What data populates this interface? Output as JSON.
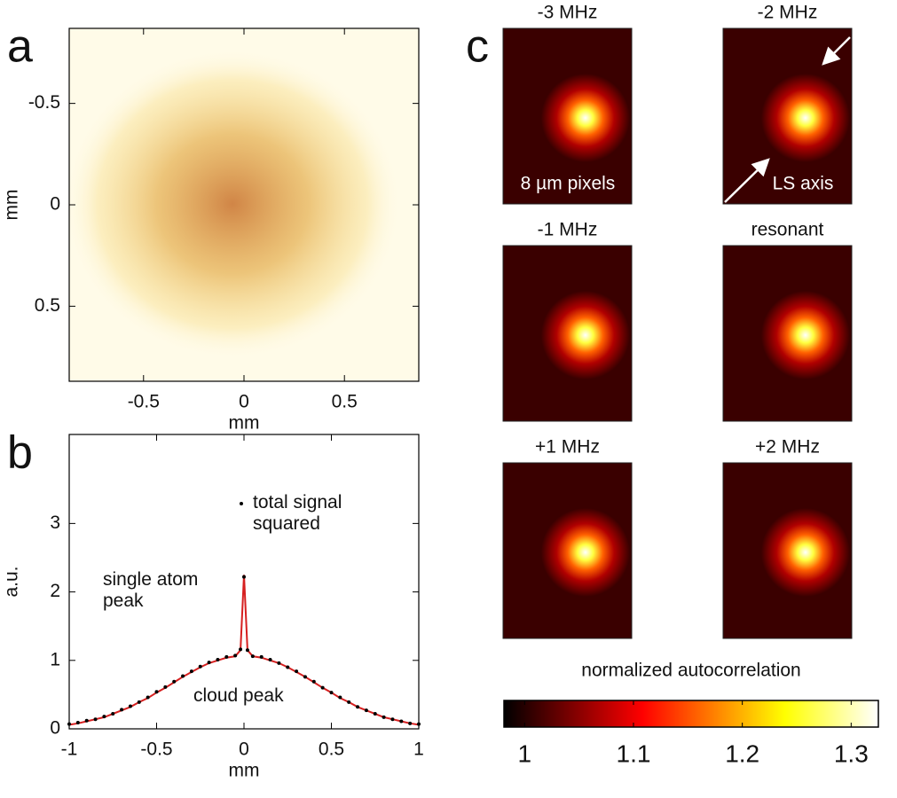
{
  "chart_data": [
    {
      "type": "image",
      "label": "a",
      "xlabel": "mm",
      "ylabel": "mm",
      "xlim": [
        -0.87,
        0.87
      ],
      "ylim": [
        -0.87,
        0.87
      ],
      "y_inverted": true,
      "xticks": [
        -0.5,
        0,
        0.5
      ],
      "yticks": [
        -0.5,
        0,
        0.5
      ]
    },
    {
      "type": "line",
      "label": "b",
      "xlabel": "mm",
      "ylabel": "a.u.",
      "xlim": [
        -1,
        1
      ],
      "ylim": [
        0,
        4.3
      ],
      "xticks": [
        -1,
        -0.5,
        0,
        0.5,
        1
      ],
      "yticks": [
        0,
        1,
        2,
        3
      ],
      "x": [
        -1,
        -0.95,
        -0.9,
        -0.85,
        -0.8,
        -0.75,
        -0.7,
        -0.65,
        -0.6,
        -0.55,
        -0.5,
        -0.45,
        -0.4,
        -0.35,
        -0.3,
        -0.25,
        -0.2,
        -0.15,
        -0.1,
        -0.05,
        -0.02,
        0,
        0.02,
        0.05,
        0.1,
        0.15,
        0.2,
        0.25,
        0.3,
        0.35,
        0.4,
        0.45,
        0.5,
        0.55,
        0.6,
        0.65,
        0.7,
        0.75,
        0.8,
        0.85,
        0.9,
        0.95,
        1
      ],
      "series": [
        {
          "name": "total signal squared",
          "color": "#000000",
          "values": [
            0.07,
            0.09,
            0.12,
            0.14,
            0.18,
            0.22,
            0.28,
            0.33,
            0.39,
            0.46,
            0.54,
            0.61,
            0.69,
            0.77,
            0.84,
            0.91,
            0.97,
            1.01,
            1.05,
            1.07,
            1.16,
            2.22,
            1.15,
            1.06,
            1.05,
            1.01,
            0.96,
            0.9,
            0.84,
            0.76,
            0.69,
            0.6,
            0.53,
            0.46,
            0.39,
            0.32,
            0.27,
            0.22,
            0.17,
            0.14,
            0.11,
            0.08,
            0.07
          ]
        },
        {
          "color": "#d62020",
          "values": [
            0.06,
            0.08,
            0.11,
            0.14,
            0.17,
            0.22,
            0.27,
            0.32,
            0.39,
            0.45,
            0.53,
            0.6,
            0.68,
            0.76,
            0.83,
            0.9,
            0.96,
            1.0,
            1.04,
            1.06,
            1.15,
            2.25,
            1.15,
            1.06,
            1.04,
            1.0,
            0.96,
            0.9,
            0.83,
            0.76,
            0.68,
            0.6,
            0.53,
            0.45,
            0.39,
            0.32,
            0.27,
            0.22,
            0.17,
            0.14,
            0.11,
            0.08,
            0.06
          ]
        }
      ],
      "annotations": [
        "single atom peak",
        "cloud peak"
      ]
    },
    {
      "type": "heatmap",
      "label": "c",
      "titles": [
        "-3 MHz",
        "-2 MHz",
        "-1 MHz",
        "resonant",
        "+1 MHz",
        "+2 MHz"
      ],
      "annotations": [
        "8 µm pixels",
        "LS axis"
      ],
      "colorbar": {
        "label": "normalized autocorrelation",
        "lim": [
          0.981,
          1.325
        ],
        "ticks": [
          1,
          1.1,
          1.2,
          1.3
        ]
      }
    }
  ]
}
